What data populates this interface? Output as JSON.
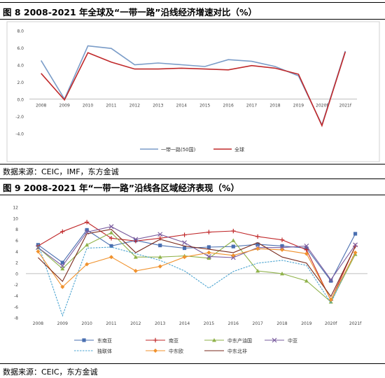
{
  "figure8": {
    "title": "图 8   2008-2021 年全球及“一带一路”沿线经济增速对比（%）",
    "source": "数据来源：CEIC，IMF，东方金诚"
  },
  "figure9": {
    "title": "图 9   2008-2021 年“一带一路”沿线各区域经济表现（%）",
    "source": "数据来源：CEIC，东方金诚"
  },
  "chart_data": [
    {
      "type": "line",
      "x": [
        "2008",
        "2009",
        "2010",
        "2011",
        "2012",
        "2013",
        "2014",
        "2015",
        "2016",
        "2017",
        "2018",
        "2019",
        "2020f",
        "2021f"
      ],
      "yticks": [
        "8.0",
        "6.0",
        "4.0",
        "2.0",
        "0.0",
        "-2.0",
        "-4.0"
      ],
      "ylim": [
        -4,
        8
      ],
      "grid": false,
      "legend_position": "bottom",
      "series": [
        {
          "name": "一带一路(50国)",
          "color": "#7a9cc8",
          "values": [
            4.5,
            0.0,
            6.2,
            5.9,
            4.0,
            4.2,
            4.0,
            3.8,
            4.6,
            4.4,
            3.8,
            2.7,
            -3.0,
            5.6
          ]
        },
        {
          "name": "全球",
          "color": "#c0282a",
          "values": [
            3.0,
            -0.1,
            5.4,
            4.3,
            3.5,
            3.5,
            3.6,
            3.5,
            3.4,
            3.9,
            3.6,
            2.9,
            -3.1,
            5.5
          ]
        }
      ]
    },
    {
      "type": "line",
      "x": [
        "2008",
        "2009",
        "2010",
        "2011",
        "2012",
        "2013",
        "2014",
        "2015",
        "2016",
        "2017",
        "2018",
        "2019",
        "2020f",
        "2021f"
      ],
      "yticks": [
        "12",
        "10",
        "8",
        "6",
        "4",
        "2",
        "0",
        "-2",
        "-4",
        "-6",
        "-8"
      ],
      "ylim": [
        -8,
        12
      ],
      "grid": false,
      "legend_position": "bottom",
      "series": [
        {
          "name": "东南亚",
          "color": "#4a6fb0",
          "marker": "square",
          "dash": false,
          "values": [
            5.2,
            2.0,
            7.9,
            5.0,
            6.0,
            5.1,
            4.6,
            4.8,
            4.9,
            5.3,
            5.0,
            4.6,
            -1.3,
            7.2
          ]
        },
        {
          "name": "南亚",
          "color": "#c0282a",
          "marker": "plus",
          "dash": false,
          "values": [
            5.0,
            7.6,
            9.3,
            6.4,
            5.9,
            6.4,
            7.0,
            7.5,
            7.7,
            6.7,
            6.1,
            4.3,
            -4.8,
            5.0
          ]
        },
        {
          "name": "中东产油国",
          "color": "#8fb24a",
          "marker": "triangle",
          "dash": false,
          "values": [
            4.7,
            0.9,
            5.2,
            7.4,
            3.0,
            3.0,
            3.2,
            2.8,
            6.0,
            0.5,
            0.0,
            -1.3,
            -5.1,
            3.5
          ]
        },
        {
          "name": "中亚",
          "color": "#7a5c9e",
          "marker": "x",
          "dash": false,
          "values": [
            4.7,
            1.4,
            7.5,
            8.5,
            6.2,
            7.1,
            5.6,
            3.1,
            2.9,
            4.7,
            4.7,
            5.0,
            -1.1,
            5.2
          ]
        },
        {
          "name": "独联体",
          "color": "#4aa3d0",
          "marker": "none",
          "dash": true,
          "values": [
            5.4,
            -7.6,
            4.6,
            4.8,
            3.6,
            2.4,
            0.5,
            -2.6,
            0.4,
            1.9,
            2.4,
            1.5,
            -5.3,
            4.0
          ]
        },
        {
          "name": "中东欧",
          "color": "#f0922e",
          "marker": "diamond",
          "dash": false,
          "values": [
            4.0,
            -2.4,
            1.7,
            3.0,
            0.5,
            1.3,
            3.0,
            3.8,
            3.3,
            4.5,
            4.3,
            3.6,
            -4.7,
            3.8
          ]
        },
        {
          "name": "中东北非",
          "color": "#7a2a1c",
          "marker": "none",
          "dash": false,
          "values": [
            2.9,
            -1.4,
            7.2,
            8.0,
            3.8,
            6.2,
            5.0,
            4.4,
            3.8,
            5.6,
            3.0,
            1.9,
            -4.1,
            4.9
          ]
        }
      ]
    }
  ]
}
